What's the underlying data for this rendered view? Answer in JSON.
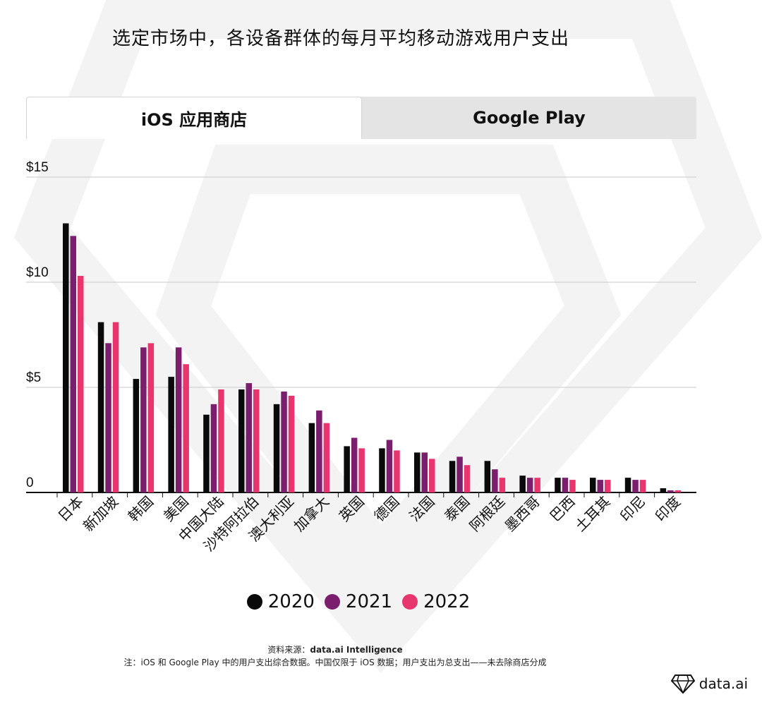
{
  "title": "选定市场中，各设备群体的每月平均移动游戏用户支出",
  "tabs": [
    {
      "label": "iOS 应用商店",
      "active": true
    },
    {
      "label": "Google Play",
      "active": false
    }
  ],
  "colors": {
    "2020": "#0a0a0a",
    "2021": "#7b1e6e",
    "2022": "#e8356e"
  },
  "chart_data": {
    "type": "bar",
    "title": "",
    "xlabel": "",
    "ylabel": "",
    "ylim": [
      0,
      15
    ],
    "yticks": [
      0,
      5,
      10,
      15
    ],
    "ytick_labels": [
      "0",
      "$5",
      "$10",
      "$15"
    ],
    "grid": true,
    "legend_position": "bottom",
    "categories": [
      "日本",
      "新加坡",
      "韩国",
      "美国",
      "中国大陆",
      "沙特阿拉伯",
      "澳大利亚",
      "加拿大",
      "英国",
      "德国",
      "法国",
      "泰国",
      "阿根廷",
      "墨西哥",
      "巴西",
      "土耳其",
      "印尼",
      "印度"
    ],
    "series": [
      {
        "name": "2020",
        "values": [
          12.8,
          8.1,
          5.4,
          5.5,
          3.7,
          4.9,
          4.2,
          3.3,
          2.2,
          2.1,
          1.9,
          1.5,
          1.5,
          0.8,
          0.7,
          0.7,
          0.7,
          0.2
        ]
      },
      {
        "name": "2021",
        "values": [
          12.2,
          7.1,
          6.9,
          6.9,
          4.2,
          5.2,
          4.8,
          3.9,
          2.6,
          2.5,
          1.9,
          1.7,
          1.1,
          0.7,
          0.7,
          0.6,
          0.6,
          0.1
        ]
      },
      {
        "name": "2022",
        "values": [
          10.3,
          8.1,
          7.1,
          6.1,
          4.9,
          4.9,
          4.6,
          3.3,
          2.1,
          2.0,
          1.6,
          1.3,
          0.7,
          0.7,
          0.6,
          0.6,
          0.6,
          0.1
        ]
      }
    ]
  },
  "source_label": "资料来源：",
  "source_name": "data.ai Intelligence",
  "note": "注：iOS 和 Google Play 中的用户支出综合数据。中国仅限于 iOS 数据；用户支出为总支出——未去除商店分成",
  "brand": "data.ai"
}
